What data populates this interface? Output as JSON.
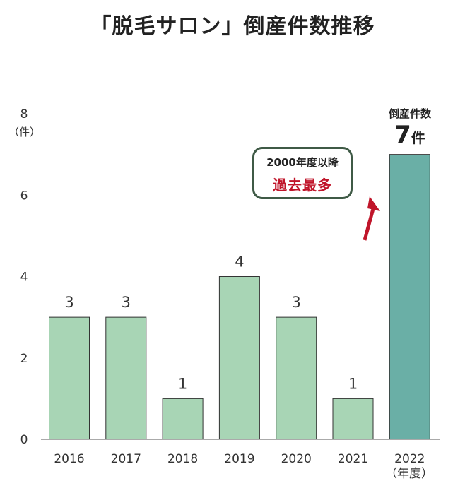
{
  "title": "「脱毛サロン」倒産件数推移",
  "chart_data": {
    "type": "bar",
    "categories": [
      "2016",
      "2017",
      "2018",
      "2019",
      "2020",
      "2021",
      "2022"
    ],
    "values": [
      3,
      3,
      1,
      4,
      3,
      1,
      7
    ],
    "data_labels": [
      "3",
      "3",
      "1",
      "4",
      "3",
      "1",
      ""
    ],
    "ylim": [
      0,
      8
    ],
    "yticks": [
      "0",
      "2",
      "4",
      "6",
      "8"
    ],
    "y_unit": "（件）",
    "x_unit": "（年度）",
    "colors": {
      "bar": "#a8d5b5",
      "highlight": "#6aafa6",
      "outline": "#333333"
    },
    "highlight": {
      "caption": "倒産件数",
      "value": "7",
      "unit": "件"
    },
    "callout": {
      "line1": "2000年度以降",
      "line2": "過去最多"
    },
    "arrow_color": "#c0152a"
  }
}
